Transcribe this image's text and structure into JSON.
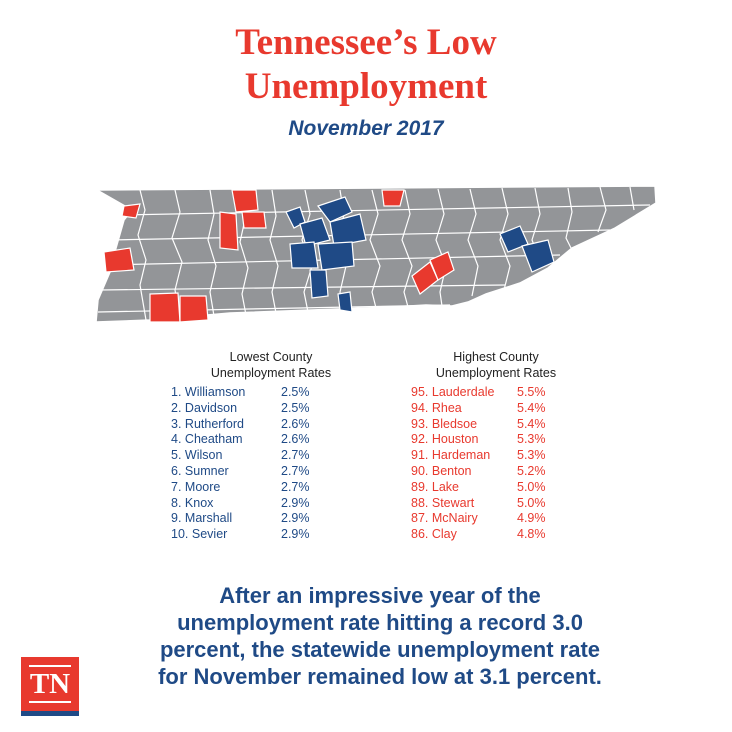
{
  "title_line1": "Tennessee’s Low",
  "title_line2": "Unemployment",
  "subtitle": "November 2017",
  "colors": {
    "low": "#1f4a86",
    "high": "#e8392e",
    "other": "#939598",
    "border": "#ffffff"
  },
  "lowest": {
    "header_line1": "Lowest County",
    "header_line2": "Unemployment Rates",
    "rows": [
      {
        "rank": "1.",
        "county": "Williamson",
        "rate": "2.5%"
      },
      {
        "rank": "2.",
        "county": "Davidson",
        "rate": "2.5%"
      },
      {
        "rank": "3.",
        "county": "Rutherford",
        "rate": "2.6%"
      },
      {
        "rank": "4.",
        "county": "Cheatham",
        "rate": "2.6%"
      },
      {
        "rank": "5.",
        "county": "Wilson",
        "rate": "2.7%"
      },
      {
        "rank": "6.",
        "county": "Sumner",
        "rate": "2.7%"
      },
      {
        "rank": "7.",
        "county": "Moore",
        "rate": "2.7%"
      },
      {
        "rank": "8.",
        "county": "Knox",
        "rate": "2.9%"
      },
      {
        "rank": "9.",
        "county": "Marshall",
        "rate": "2.9%"
      },
      {
        "rank": "10.",
        "county": "Sevier",
        "rate": "2.9%"
      }
    ]
  },
  "highest": {
    "header_line1": "Highest County",
    "header_line2": "Unemployment Rates",
    "rows": [
      {
        "rank": "95.",
        "county": "Lauderdale",
        "rate": "5.5%"
      },
      {
        "rank": "94.",
        "county": "Rhea",
        "rate": "5.4%"
      },
      {
        "rank": "93.",
        "county": "Bledsoe",
        "rate": "5.4%"
      },
      {
        "rank": "92.",
        "county": "Houston",
        "rate": "5.3%"
      },
      {
        "rank": "91.",
        "county": "Hardeman",
        "rate": "5.3%"
      },
      {
        "rank": "90.",
        "county": "Benton",
        "rate": "5.2%"
      },
      {
        "rank": "89.",
        "county": "Lake",
        "rate": "5.0%"
      },
      {
        "rank": "88.",
        "county": "Stewart",
        "rate": "5.0%"
      },
      {
        "rank": "87.",
        "county": "McNairy",
        "rate": "4.9%"
      },
      {
        "rank": "86.",
        "county": "Clay",
        "rate": "4.8%"
      }
    ]
  },
  "footer": {
    "line1": "After an impressive year of the",
    "line2": "unemployment rate hitting a record 3.0",
    "line3": "percent, the statewide unemployment rate",
    "line4_prefix": "for November remained low at ",
    "line4_strong": "3.1 percent",
    "line4_suffix": "."
  },
  "logo": {
    "text": "TN"
  }
}
